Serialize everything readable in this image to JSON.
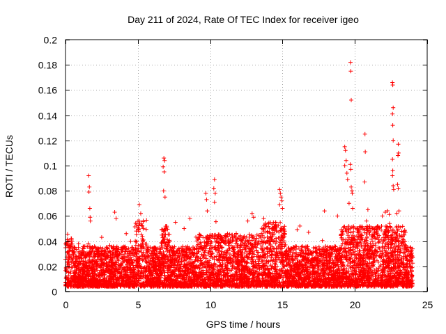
{
  "chart_data": {
    "type": "scatter",
    "title": "Day 211 of 2024, Rate Of TEC Index for receiver igeo",
    "xlabel": "GPS time / hours",
    "ylabel": "ROTI / TECUs",
    "xlim": [
      0,
      25
    ],
    "ylim": [
      0,
      0.2
    ],
    "x_ticks": [
      0,
      5,
      10,
      15,
      20,
      25
    ],
    "x_tick_labels": [
      "0",
      "5",
      "10",
      "15",
      "20",
      "25"
    ],
    "y_ticks": [
      0,
      0.02,
      0.04,
      0.06,
      0.08,
      0.1,
      0.12,
      0.14,
      0.16,
      0.18,
      0.2
    ],
    "y_tick_labels": [
      "0",
      "0.02",
      "0.04",
      "0.06",
      "0.08",
      "0.1",
      "0.12",
      "0.14",
      "0.16",
      "0.18",
      "0.2"
    ],
    "grid": true,
    "marker": "+",
    "color": "#ff0000",
    "series": [
      {
        "name": "ROTI",
        "points": [
          [
            1.6,
            0.092
          ],
          [
            1.65,
            0.083
          ],
          [
            1.62,
            0.079
          ],
          [
            1.68,
            0.066
          ],
          [
            1.7,
            0.059
          ],
          [
            1.72,
            0.056
          ],
          [
            6.8,
            0.106
          ],
          [
            6.85,
            0.104
          ],
          [
            6.75,
            0.099
          ],
          [
            6.82,
            0.095
          ],
          [
            6.78,
            0.08
          ],
          [
            6.88,
            0.075
          ],
          [
            10.3,
            0.089
          ],
          [
            10.25,
            0.082
          ],
          [
            10.35,
            0.078
          ],
          [
            10.3,
            0.071
          ],
          [
            9.7,
            0.078
          ],
          [
            9.75,
            0.073
          ],
          [
            9.8,
            0.064
          ],
          [
            5.1,
            0.069
          ],
          [
            5.2,
            0.062
          ],
          [
            3.4,
            0.063
          ],
          [
            3.5,
            0.058
          ],
          [
            7.6,
            0.055
          ],
          [
            8.6,
            0.058
          ],
          [
            11.2,
            0.046
          ],
          [
            11.8,
            0.045
          ],
          [
            12.6,
            0.056
          ],
          [
            12.9,
            0.062
          ],
          [
            13.0,
            0.059
          ],
          [
            14.8,
            0.081
          ],
          [
            14.85,
            0.078
          ],
          [
            14.9,
            0.075
          ],
          [
            14.95,
            0.072
          ],
          [
            14.8,
            0.069
          ],
          [
            15.0,
            0.066
          ],
          [
            13.7,
            0.058
          ],
          [
            16.2,
            0.052
          ],
          [
            17.9,
            0.064
          ],
          [
            18.8,
            0.06
          ],
          [
            19.3,
            0.115
          ],
          [
            19.35,
            0.112
          ],
          [
            19.4,
            0.104
          ],
          [
            19.3,
            0.1
          ],
          [
            19.45,
            0.094
          ],
          [
            19.5,
            0.089
          ],
          [
            19.7,
            0.182
          ],
          [
            19.72,
            0.175
          ],
          [
            19.75,
            0.152
          ],
          [
            19.68,
            0.101
          ],
          [
            19.72,
            0.097
          ],
          [
            19.75,
            0.083
          ],
          [
            19.8,
            0.08
          ],
          [
            19.82,
            0.078
          ],
          [
            19.85,
            0.066
          ],
          [
            19.6,
            0.07
          ],
          [
            20.7,
            0.125
          ],
          [
            20.72,
            0.111
          ],
          [
            20.68,
            0.087
          ],
          [
            20.9,
            0.065
          ],
          [
            20.8,
            0.056
          ],
          [
            21.9,
            0.06
          ],
          [
            22.1,
            0.063
          ],
          [
            22.4,
            0.054
          ],
          [
            22.6,
            0.166
          ],
          [
            22.62,
            0.164
          ],
          [
            22.65,
            0.146
          ],
          [
            22.6,
            0.141
          ],
          [
            22.62,
            0.132
          ],
          [
            22.65,
            0.12
          ],
          [
            22.6,
            0.105
          ],
          [
            22.62,
            0.096
          ],
          [
            22.6,
            0.092
          ],
          [
            22.65,
            0.084
          ],
          [
            22.68,
            0.081
          ],
          [
            23.0,
            0.117
          ],
          [
            23.02,
            0.11
          ],
          [
            22.98,
            0.108
          ],
          [
            22.95,
            0.085
          ],
          [
            23.0,
            0.082
          ],
          [
            23.05,
            0.064
          ],
          [
            22.9,
            0.062
          ],
          [
            23.5,
            0.047
          ],
          [
            0.3,
            0.037
          ],
          [
            0.9,
            0.038
          ],
          [
            2.5,
            0.043
          ],
          [
            4.2,
            0.046
          ],
          [
            8.2,
            0.05
          ],
          [
            16.8,
            0.047
          ]
        ]
      }
    ]
  }
}
